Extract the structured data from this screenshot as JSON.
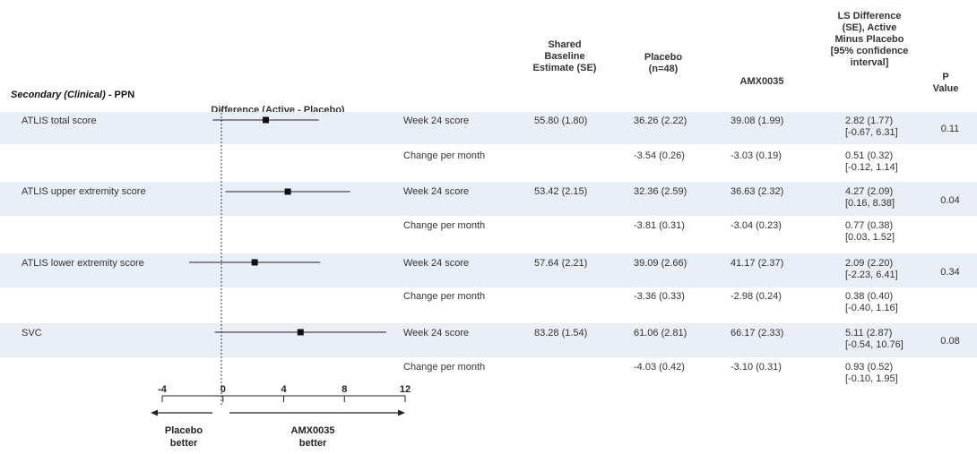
{
  "headers": {
    "difference": "Difference (Active - Placebo)",
    "shared": [
      "Shared",
      "Baseline",
      "Estimate (SE)"
    ],
    "placebo": [
      "Placebo",
      "(n=48)"
    ],
    "amx": "AMX0035",
    "lsdiff": [
      "LS Difference",
      "(SE), Active",
      "Minus Placebo",
      "[95% confidence",
      "interval]"
    ],
    "pvalue": [
      "P",
      "Value"
    ]
  },
  "section": {
    "italic": "Secondary (Clinical)",
    "rest": " - PPN"
  },
  "rows": [
    {
      "label": "ATLIS total score",
      "pvalue": "0.11",
      "week": {
        "timepoint": "Week 24 score",
        "shared": "55.80 (1.80)",
        "placebo": "36.26 (2.22)",
        "amx": "39.08 (1.99)",
        "lsd1": "2.82 (1.77)",
        "lsd2": "[-0.67, 6.31]"
      },
      "change": {
        "timepoint": "Change per month",
        "placebo": "-3.54 (0.26)",
        "amx": "-3.03 (0.19)",
        "lsd1": "0.51 (0.32)",
        "lsd2": "[-0.12, 1.14]"
      }
    },
    {
      "label": "ATLIS upper extremity score",
      "pvalue": "0.04",
      "week": {
        "timepoint": "Week 24 score",
        "shared": "53.42 (2.15)",
        "placebo": "32.36 (2.59)",
        "amx": "36.63 (2.32)",
        "lsd1": "4.27 (2.09)",
        "lsd2": "[0.16, 8.38]"
      },
      "change": {
        "timepoint": "Change per month",
        "placebo": "-3.81 (0.31)",
        "amx": "-3.04 (0.23)",
        "lsd1": "0.77 (0.38)",
        "lsd2": "[0.03, 1.52]"
      }
    },
    {
      "label": "ATLIS lower extremity score",
      "pvalue": "0.34",
      "week": {
        "timepoint": "Week 24 score",
        "shared": "57.64 (2.21)",
        "placebo": "39.09 (2.66)",
        "amx": "41.17 (2.37)",
        "lsd1": "2.09 (2.20)",
        "lsd2": "[-2.23, 6.41]"
      },
      "change": {
        "timepoint": "Change per month",
        "placebo": "-3.36 (0.33)",
        "amx": "-2.98 (0.24)",
        "lsd1": "0.38 (0.40)",
        "lsd2": "[-0.40, 1.16]"
      }
    },
    {
      "label": "SVC",
      "pvalue": "0.08",
      "week": {
        "timepoint": "Week 24 score",
        "shared": "83.28 (1.54)",
        "placebo": "61.06 (2.81)",
        "amx": "66.17 (2.33)",
        "lsd1": "5.11 (2.87)",
        "lsd2": "[-0.54, 10.76]"
      },
      "change": {
        "timepoint": "Change per month",
        "placebo": "-4.03 (0.42)",
        "amx": "-3.10 (0.31)",
        "lsd1": "0.93 (0.52)",
        "lsd2": "[-0.10, 1.95]"
      }
    }
  ],
  "axis": {
    "ticks": [
      -4,
      0,
      4,
      8,
      12
    ],
    "tick_labels": [
      "-4",
      "0",
      "4",
      "8",
      "12"
    ],
    "left_label": [
      "Placebo",
      "better"
    ],
    "right_label": [
      "AMX0035",
      "better"
    ]
  },
  "chart_data": {
    "type": "scatter",
    "title": "Difference (Active - Placebo)",
    "xlim": [
      -4,
      12
    ],
    "reference_line": 0,
    "categories": [
      "ATLIS total score",
      "ATLIS upper extremity score",
      "ATLIS lower extremity score",
      "SVC"
    ],
    "estimates": [
      2.82,
      4.27,
      2.09,
      5.11
    ],
    "ci_low": [
      -0.67,
      0.16,
      -2.23,
      -0.54
    ],
    "ci_high": [
      6.31,
      8.38,
      6.41,
      10.76
    ]
  },
  "colors": {
    "band": "#e9eef7",
    "marker": "#111111",
    "line": "#222222"
  }
}
